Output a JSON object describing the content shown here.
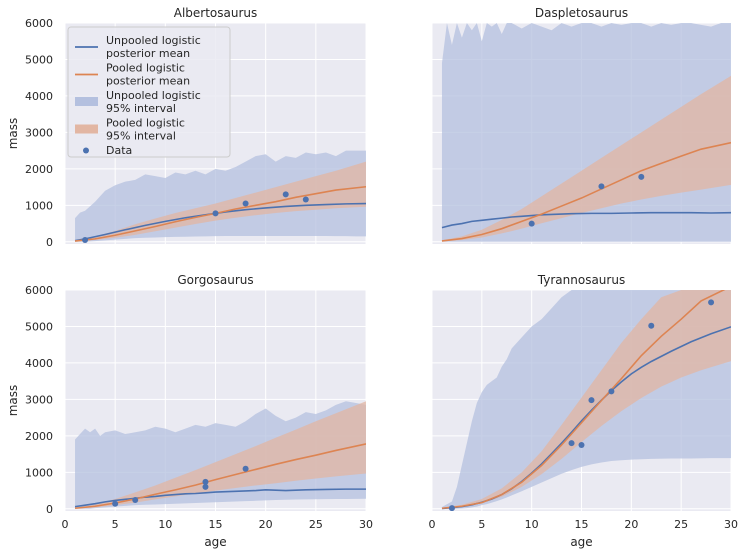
{
  "colors": {
    "unpooled": "#4c72b0",
    "pooled": "#dd8452",
    "unpooled_band": "#b4c0df",
    "pooled_band": "#e2b6a3",
    "panel_bg": "#eaeaf2",
    "grid": "#ffffff"
  },
  "chart_data": [
    {
      "type": "line",
      "title": "Albertosaurus",
      "xlabel": "",
      "ylabel": "mass",
      "xlim": [
        0,
        30
      ],
      "ylim": [
        -60,
        6000
      ],
      "xticks": [
        0,
        5,
        10,
        15,
        20,
        25,
        30
      ],
      "yticks": [
        0,
        1000,
        2000,
        3000,
        4000,
        5000,
        6000
      ],
      "show_xticklabels": false,
      "show_yticklabels": true,
      "legend": {
        "location": "top-left",
        "entries": [
          {
            "kind": "line",
            "series": "unpooled",
            "label": [
              "Unpooled logistic",
              "posterior mean"
            ]
          },
          {
            "kind": "line",
            "series": "pooled",
            "label": [
              "Pooled logistic",
              "posterior mean"
            ]
          },
          {
            "kind": "band",
            "series": "unpooled",
            "label": [
              "Unpooled logistic",
              "95% interval"
            ]
          },
          {
            "kind": "band",
            "series": "pooled",
            "label": [
              "Pooled logistic",
              "95% interval"
            ]
          },
          {
            "kind": "dot",
            "series": "data",
            "label": [
              "Data"
            ]
          }
        ]
      },
      "unpooled_band": {
        "x": [
          1,
          1.5,
          2,
          3,
          4,
          5,
          6,
          7,
          8,
          9,
          10,
          11,
          12,
          13,
          14,
          15,
          16,
          17,
          18,
          19,
          20,
          21,
          22,
          23,
          24,
          25,
          26,
          27,
          28,
          29,
          30
        ],
        "upper": [
          650,
          800,
          850,
          1100,
          1400,
          1550,
          1650,
          1700,
          1850,
          1800,
          1750,
          1900,
          1850,
          1950,
          1850,
          2000,
          1950,
          2050,
          2200,
          2350,
          2400,
          2200,
          2350,
          2300,
          2450,
          2400,
          2450,
          2350,
          2500,
          2500,
          2500
        ],
        "lower": [
          0,
          0,
          0,
          20,
          40,
          60,
          80,
          100,
          110,
          120,
          130,
          135,
          140,
          145,
          150,
          155,
          160,
          160,
          160,
          160,
          160,
          160,
          160,
          160,
          160,
          160,
          160,
          155,
          155,
          150,
          150
        ]
      },
      "pooled_band": {
        "x": [
          1,
          3,
          5,
          7,
          9,
          11,
          13,
          15,
          17,
          19,
          21,
          23,
          25,
          27,
          30
        ],
        "upper": [
          30,
          150,
          300,
          480,
          640,
          790,
          920,
          1050,
          1200,
          1350,
          1500,
          1650,
          1800,
          1950,
          2200
        ],
        "lower": [
          10,
          50,
          110,
          190,
          290,
          390,
          490,
          580,
          660,
          730,
          790,
          840,
          880,
          920,
          960
        ]
      },
      "unpooled_mean": {
        "x": [
          1,
          2,
          4,
          6,
          8,
          10,
          12,
          14,
          16,
          18,
          20,
          22,
          24,
          26,
          28,
          30
        ],
        "y": [
          30,
          80,
          200,
          330,
          450,
          560,
          660,
          740,
          820,
          880,
          930,
          970,
          1000,
          1020,
          1040,
          1050
        ]
      },
      "pooled_mean": {
        "x": [
          1,
          3,
          5,
          7,
          9,
          11,
          13,
          15,
          17,
          19,
          21,
          23,
          25,
          27,
          30
        ],
        "y": [
          20,
          80,
          180,
          300,
          420,
          550,
          670,
          780,
          900,
          1000,
          1100,
          1220,
          1320,
          1420,
          1510
        ]
      },
      "points": {
        "x": [
          2,
          15,
          18,
          22,
          24
        ],
        "y": [
          50,
          780,
          1050,
          1300,
          1160
        ]
      }
    },
    {
      "type": "line",
      "title": "Daspletosaurus",
      "xlabel": "",
      "ylabel": "",
      "xlim": [
        0,
        30
      ],
      "ylim": [
        -60,
        6000
      ],
      "xticks": [
        0,
        5,
        10,
        15,
        20,
        25,
        30
      ],
      "yticks": [
        0,
        1000,
        2000,
        3000,
        4000,
        5000,
        6000
      ],
      "show_xticklabels": false,
      "show_yticklabels": false,
      "unpooled_band": {
        "x": [
          1,
          1.5,
          2,
          2.5,
          3,
          3.5,
          4,
          4.5,
          5,
          5.5,
          6,
          6.5,
          7,
          7.5,
          8,
          9,
          10,
          11,
          12,
          13,
          14,
          15,
          16,
          17,
          18,
          19,
          20,
          21,
          22,
          23,
          24,
          25,
          26,
          27,
          28,
          29,
          30
        ],
        "upper": [
          4900,
          6000,
          5400,
          6000,
          5600,
          6000,
          5800,
          6000,
          5500,
          6000,
          5900,
          6000,
          5700,
          6000,
          6000,
          5850,
          6000,
          5900,
          5800,
          6000,
          5900,
          6000,
          6000,
          5900,
          6000,
          5950,
          6000,
          6000,
          5900,
          6000,
          5950,
          6000,
          6000,
          5950,
          5900,
          6000,
          6000
        ],
        "lower": [
          0,
          0,
          0,
          0,
          0,
          0,
          0,
          0,
          0,
          0,
          0,
          0,
          0,
          0,
          0,
          0,
          0,
          0,
          0,
          0,
          0,
          0,
          0,
          0,
          0,
          0,
          0,
          0,
          0,
          0,
          0,
          0,
          0,
          0,
          0,
          0,
          0
        ]
      },
      "pooled_band": {
        "x": [
          1,
          3,
          5,
          7,
          9,
          11,
          13,
          15,
          17,
          19,
          21,
          23,
          25,
          27,
          30
        ],
        "upper": [
          40,
          150,
          330,
          600,
          900,
          1250,
          1600,
          1950,
          2300,
          2650,
          3000,
          3350,
          3700,
          4050,
          4550
        ],
        "lower": [
          10,
          50,
          120,
          230,
          360,
          510,
          650,
          790,
          920,
          1050,
          1160,
          1260,
          1350,
          1430,
          1560
        ]
      },
      "unpooled_mean": {
        "x": [
          1,
          2,
          3,
          4,
          5,
          6,
          7,
          8,
          9,
          10,
          11,
          12,
          14,
          16,
          18,
          20,
          22,
          24,
          26,
          28,
          30
        ],
        "y": [
          390,
          460,
          500,
          560,
          590,
          620,
          650,
          680,
          700,
          720,
          740,
          750,
          770,
          780,
          780,
          790,
          800,
          800,
          800,
          790,
          800
        ]
      },
      "pooled_mean": {
        "x": [
          1,
          3,
          5,
          7,
          9,
          11,
          13,
          15,
          17,
          19,
          21,
          23,
          25,
          27,
          30
        ],
        "y": [
          25,
          90,
          200,
          360,
          560,
          760,
          980,
          1200,
          1450,
          1700,
          1950,
          2150,
          2350,
          2540,
          2720
        ]
      },
      "points": {
        "x": [
          10,
          17,
          21
        ],
        "y": [
          500,
          1520,
          1780
        ]
      }
    },
    {
      "type": "line",
      "title": "Gorgosaurus",
      "xlabel": "age",
      "ylabel": "mass",
      "xlim": [
        0,
        30
      ],
      "ylim": [
        -60,
        6000
      ],
      "xticks": [
        0,
        5,
        10,
        15,
        20,
        25,
        30
      ],
      "yticks": [
        0,
        1000,
        2000,
        3000,
        4000,
        5000,
        6000
      ],
      "show_xticklabels": true,
      "show_yticklabels": true,
      "unpooled_band": {
        "x": [
          1,
          1.5,
          2,
          2.5,
          3,
          3.5,
          4,
          5,
          6,
          7,
          8,
          9,
          10,
          11,
          12,
          13,
          14,
          15,
          16,
          17,
          18,
          19,
          20,
          21,
          22,
          23,
          24,
          25,
          26,
          27,
          28,
          29,
          30
        ],
        "upper": [
          1900,
          2050,
          2200,
          2100,
          2200,
          2000,
          2100,
          2150,
          2050,
          2100,
          2150,
          2250,
          2200,
          2100,
          2200,
          2300,
          2250,
          2350,
          2300,
          2250,
          2400,
          2600,
          2750,
          2550,
          2400,
          2500,
          2650,
          2600,
          2700,
          2850,
          2950,
          2900,
          2850
        ],
        "lower": [
          0,
          0,
          0,
          0,
          20,
          30,
          40,
          60,
          80,
          100,
          110,
          120,
          130,
          140,
          150,
          160,
          170,
          180,
          190,
          200,
          210,
          220,
          230,
          240,
          250,
          255,
          260,
          262,
          265,
          268,
          270,
          272,
          275
        ]
      },
      "pooled_band": {
        "x": [
          1,
          3,
          5,
          7,
          9,
          11,
          13,
          15,
          17,
          19,
          21,
          23,
          25,
          27,
          30
        ],
        "upper": [
          25,
          120,
          270,
          450,
          640,
          850,
          1060,
          1280,
          1500,
          1720,
          1950,
          2170,
          2400,
          2620,
          2950
        ],
        "lower": [
          8,
          40,
          100,
          170,
          260,
          340,
          420,
          500,
          570,
          640,
          700,
          770,
          830,
          890,
          970
        ]
      },
      "unpooled_mean": {
        "x": [
          1,
          2,
          3,
          4,
          5,
          6,
          7,
          8,
          9,
          10,
          11,
          12,
          13,
          14,
          15,
          16,
          17,
          18,
          19,
          20,
          21,
          22,
          24,
          26,
          28,
          30
        ],
        "y": [
          60,
          100,
          140,
          190,
          230,
          260,
          290,
          320,
          340,
          370,
          390,
          410,
          420,
          440,
          460,
          470,
          480,
          490,
          500,
          520,
          510,
          500,
          520,
          530,
          540,
          540
        ]
      },
      "pooled_mean": {
        "x": [
          1,
          3,
          5,
          7,
          9,
          11,
          13,
          15,
          17,
          19,
          21,
          23,
          25,
          27,
          30
        ],
        "y": [
          15,
          70,
          160,
          270,
          400,
          520,
          650,
          800,
          940,
          1080,
          1220,
          1350,
          1470,
          1600,
          1780
        ]
      },
      "points": {
        "x": [
          5,
          7,
          14,
          14,
          18
        ],
        "y": [
          140,
          240,
          600,
          740,
          1100
        ]
      }
    },
    {
      "type": "line",
      "title": "Tyrannosaurus",
      "xlabel": "age",
      "ylabel": "",
      "xlim": [
        0,
        30
      ],
      "ylim": [
        -60,
        6000
      ],
      "xticks": [
        0,
        5,
        10,
        15,
        20,
        25,
        30
      ],
      "yticks": [
        0,
        1000,
        2000,
        3000,
        4000,
        5000,
        6000
      ],
      "show_xticklabels": true,
      "show_yticklabels": false,
      "unpooled_band": {
        "x": [
          1,
          2,
          2.5,
          3,
          3.5,
          4,
          4.5,
          5,
          5.5,
          6,
          6.5,
          7,
          7.5,
          8,
          9,
          10,
          11,
          12,
          13,
          14,
          15,
          16,
          17,
          18,
          19,
          20,
          22,
          24,
          26,
          28,
          30
        ],
        "upper": [
          50,
          200,
          600,
          1200,
          1800,
          2400,
          2900,
          3200,
          3400,
          3500,
          3600,
          3900,
          4100,
          4400,
          4700,
          5000,
          5200,
          5500,
          5800,
          6000,
          6000,
          6000,
          6000,
          6000,
          6000,
          6000,
          6000,
          6000,
          6000,
          6000,
          6000
        ],
        "lower": [
          0,
          0,
          0,
          10,
          20,
          40,
          60,
          100,
          130,
          170,
          210,
          260,
          310,
          370,
          480,
          600,
          720,
          840,
          960,
          1060,
          1150,
          1220,
          1270,
          1310,
          1330,
          1350,
          1370,
          1380,
          1380,
          1390,
          1390
        ]
      },
      "pooled_band": {
        "x": [
          1,
          3,
          5,
          7,
          9,
          11,
          13,
          15,
          17,
          19,
          21,
          23,
          25,
          27,
          30
        ],
        "upper": [
          30,
          110,
          270,
          560,
          1000,
          1580,
          2300,
          3050,
          3800,
          4550,
          5200,
          5800,
          6000,
          6000,
          6000
        ],
        "lower": [
          10,
          60,
          150,
          330,
          600,
          950,
          1370,
          1830,
          2270,
          2680,
          3040,
          3350,
          3600,
          3800,
          4050
        ]
      },
      "unpooled_mean": {
        "x": [
          1,
          2,
          3,
          4,
          5,
          6,
          7,
          8,
          9,
          10,
          11,
          12,
          13,
          14,
          15,
          16,
          17,
          18,
          19,
          20,
          21,
          22,
          24,
          26,
          28,
          30
        ],
        "y": [
          10,
          30,
          60,
          110,
          180,
          270,
          390,
          550,
          750,
          980,
          1230,
          1510,
          1800,
          2100,
          2410,
          2700,
          2980,
          3240,
          3480,
          3700,
          3880,
          4040,
          4320,
          4580,
          4800,
          4990
        ]
      },
      "pooled_mean": {
        "x": [
          1,
          3,
          5,
          7,
          9,
          11,
          13,
          15,
          17,
          19,
          21,
          23,
          25,
          27,
          30
        ],
        "y": [
          15,
          70,
          170,
          390,
          730,
          1190,
          1750,
          2360,
          2970,
          3570,
          4200,
          4730,
          5200,
          5700,
          6100
        ]
      },
      "points": {
        "x": [
          2,
          14,
          15,
          16,
          18,
          22,
          28
        ],
        "y": [
          20,
          1800,
          1750,
          2980,
          3220,
          5020,
          5660
        ]
      }
    }
  ]
}
